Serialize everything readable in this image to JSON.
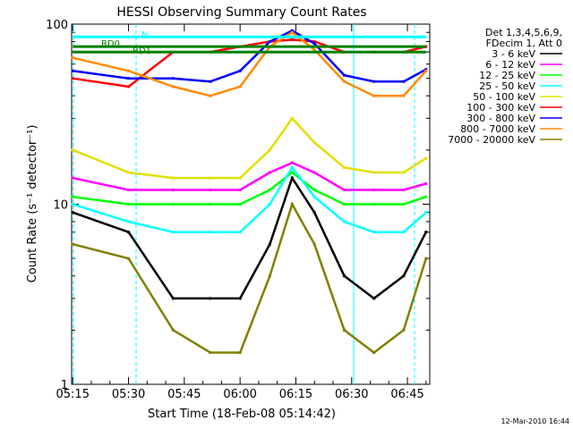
{
  "chart_data": {
    "type": "line",
    "title": "HESSI Observing Summary Count Rates",
    "xlabel": "Start Time (18-Feb-08 05:14:42)",
    "ylabel": "Count Rate (s⁻¹ detector⁻¹)",
    "x_ticks": [
      "05:15",
      "05:30",
      "05:45",
      "06:00",
      "06:15",
      "06:30",
      "06:45"
    ],
    "y_ticks": [
      "1",
      "10",
      "100"
    ],
    "xlim": [
      "05:14:42",
      "06:51:00"
    ],
    "ylim": [
      1,
      100
    ],
    "y_scale": "log",
    "grid": false,
    "legend_position": "right",
    "legend_header": [
      "Det 1,3,4,5,6,9,",
      "FDecim 1, Att 0"
    ],
    "annotations": {
      "rd0": "RD0",
      "rd1": "RD1",
      "n": "N"
    },
    "timestamp": "12-Mar-2010 16:44",
    "series": [
      {
        "name": "3 - 6 keV",
        "color": "#000000",
        "x": [
          "05:15",
          "05:30",
          "05:42",
          "05:52",
          "06:00",
          "06:08",
          "06:14",
          "06:20",
          "06:28",
          "06:36",
          "06:44",
          "06:50"
        ],
        "y": [
          9,
          7,
          3,
          3,
          3,
          6,
          14,
          9,
          4,
          3,
          4,
          7
        ]
      },
      {
        "name": "6 - 12 keV",
        "color": "#ff00ff",
        "x": [
          "05:15",
          "05:30",
          "05:42",
          "05:52",
          "06:00",
          "06:08",
          "06:14",
          "06:20",
          "06:28",
          "06:36",
          "06:44",
          "06:50"
        ],
        "y": [
          14,
          12,
          12,
          12,
          12,
          15,
          17,
          15,
          12,
          12,
          12,
          13
        ]
      },
      {
        "name": "12 - 25 keV",
        "color": "#00ff00",
        "x": [
          "05:15",
          "05:30",
          "05:42",
          "05:52",
          "06:00",
          "06:08",
          "06:14",
          "06:20",
          "06:28",
          "06:36",
          "06:44",
          "06:50"
        ],
        "y": [
          11,
          10,
          10,
          10,
          10,
          12,
          15,
          12,
          10,
          10,
          10,
          11
        ]
      },
      {
        "name": "25 - 50 keV",
        "color": "#00ffff",
        "x": [
          "05:15",
          "05:30",
          "05:42",
          "05:52",
          "06:00",
          "06:08",
          "06:14",
          "06:20",
          "06:28",
          "06:36",
          "06:44",
          "06:50"
        ],
        "y": [
          10,
          8,
          7,
          7,
          7,
          10,
          16,
          11,
          8,
          7,
          7,
          9
        ]
      },
      {
        "name": "50 - 100 keV",
        "color": "#e0e000",
        "x": [
          "05:15",
          "05:30",
          "05:42",
          "05:52",
          "06:00",
          "06:08",
          "06:14",
          "06:20",
          "06:28",
          "06:36",
          "06:44",
          "06:50"
        ],
        "y": [
          20,
          15,
          14,
          14,
          14,
          20,
          30,
          22,
          16,
          15,
          15,
          18
        ]
      },
      {
        "name": "100 - 300 keV",
        "color": "#ff0000",
        "x": [
          "05:15",
          "05:30",
          "05:42",
          "05:52",
          "06:00",
          "06:08",
          "06:14",
          "06:20",
          "06:28",
          "06:36",
          "06:44",
          "06:50"
        ],
        "y": [
          50,
          45,
          70,
          70,
          75,
          80,
          82,
          80,
          70,
          70,
          70,
          75
        ]
      },
      {
        "name": "300 - 800 keV",
        "color": "#0000ff",
        "x": [
          "05:15",
          "05:30",
          "05:42",
          "05:52",
          "06:00",
          "06:08",
          "06:14",
          "06:20",
          "06:28",
          "06:36",
          "06:44",
          "06:50"
        ],
        "y": [
          55,
          50,
          50,
          48,
          55,
          80,
          92,
          78,
          52,
          48,
          48,
          56
        ]
      },
      {
        "name": "800 - 7000 keV",
        "color": "#ff8c00",
        "x": [
          "05:15",
          "05:30",
          "05:42",
          "05:52",
          "06:00",
          "06:08",
          "06:14",
          "06:20",
          "06:28",
          "06:36",
          "06:44",
          "06:50"
        ],
        "y": [
          65,
          55,
          45,
          40,
          45,
          75,
          90,
          72,
          48,
          40,
          40,
          55
        ]
      },
      {
        "name": "7000 - 20000 keV",
        "color": "#808000",
        "x": [
          "05:15",
          "05:30",
          "05:42",
          "05:52",
          "06:00",
          "06:08",
          "06:14",
          "06:20",
          "06:28",
          "06:36",
          "06:44",
          "06:50"
        ],
        "y": [
          6,
          5,
          2,
          1.5,
          1.5,
          4,
          10,
          6,
          2,
          1.5,
          2,
          5
        ]
      }
    ],
    "markers": [
      {
        "name": "RD0",
        "color": "#008000",
        "x": [
          "05:15",
          "06:50"
        ],
        "y": [
          70,
          70
        ]
      },
      {
        "name": "RD1",
        "color": "#008000",
        "x": [
          "05:15",
          "06:50"
        ],
        "y": [
          75,
          75
        ]
      },
      {
        "name": "N",
        "color": "#00ffff",
        "x": [
          "05:15",
          "06:50"
        ],
        "y": [
          85,
          85
        ]
      }
    ]
  }
}
